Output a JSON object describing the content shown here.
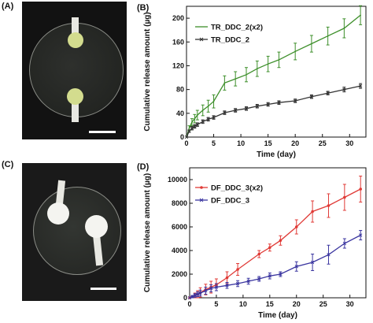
{
  "panels": {
    "A": {
      "label": "(A)"
    },
    "B": {
      "label": "(B)"
    },
    "C": {
      "label": "(C)"
    },
    "D": {
      "label": "(D)"
    }
  },
  "chart_data": [
    {
      "panel": "(B)",
      "type": "line",
      "xlabel": "Time (day)",
      "ylabel": "Cumulative release amount (µg)",
      "xlim": [
        0,
        33
      ],
      "ylim": [
        0,
        220
      ],
      "xticks": [
        0,
        5,
        10,
        15,
        20,
        25,
        30
      ],
      "yticks": [
        0,
        40,
        80,
        120,
        160,
        200
      ],
      "grid": false,
      "legend_position": "top-left",
      "series": [
        {
          "name": "TR_DDC_2(x2)",
          "color": "#3d8f2a",
          "marker": "none",
          "x": [
            0,
            0.5,
            1,
            1.5,
            2,
            3,
            4,
            5,
            7,
            9,
            11,
            13,
            15,
            17,
            20,
            23,
            26,
            29,
            32
          ],
          "y": [
            0,
            15,
            25,
            31,
            37,
            45,
            52,
            60,
            91,
            98,
            105,
            115,
            123,
            130,
            144,
            157,
            170,
            183,
            205
          ],
          "err": [
            0,
            4,
            6,
            7,
            8,
            9,
            10,
            11,
            12,
            12,
            12,
            13,
            13,
            13,
            14,
            14,
            15,
            16,
            16
          ]
        },
        {
          "name": "TR_DDC_2",
          "color": "#333333",
          "marker": "x",
          "x": [
            0,
            0.5,
            1,
            1.5,
            2,
            3,
            4,
            5,
            7,
            9,
            11,
            13,
            15,
            17,
            20,
            23,
            26,
            29,
            32
          ],
          "y": [
            0,
            10,
            15,
            18,
            21,
            26,
            30,
            33,
            41,
            45,
            48,
            52,
            55,
            58,
            61,
            68,
            74,
            80,
            86
          ],
          "err": [
            0,
            2,
            3,
            3,
            3,
            3,
            3,
            3,
            3,
            3,
            3,
            3,
            3,
            3,
            3,
            3,
            3,
            4,
            4
          ]
        }
      ]
    },
    {
      "panel": "(D)",
      "type": "line",
      "xlabel": "Time (day)",
      "ylabel": "Cumulative release amount (µg)",
      "xlim": [
        0,
        33
      ],
      "ylim": [
        0,
        11000
      ],
      "xticks": [
        0,
        5,
        10,
        15,
        20,
        25,
        30
      ],
      "yticks": [
        0,
        2000,
        4000,
        6000,
        8000,
        10000
      ],
      "grid": false,
      "legend_position": "top-left",
      "series": [
        {
          "name": "DF_DDC_3(x2)",
          "color": "#e03a36",
          "marker": "dot",
          "x": [
            0,
            0.5,
            1,
            1.5,
            2,
            3,
            4,
            5,
            7,
            9,
            13,
            15,
            17,
            20,
            23,
            26,
            29,
            32
          ],
          "y": [
            0,
            100,
            200,
            300,
            450,
            700,
            900,
            1100,
            1700,
            2400,
            3700,
            4250,
            4850,
            6000,
            7300,
            7800,
            8500,
            9200
          ],
          "err": [
            0,
            100,
            200,
            300,
            400,
            450,
            500,
            500,
            500,
            500,
            300,
            300,
            400,
            600,
            900,
            1000,
            1100,
            1100
          ]
        },
        {
          "name": "DF_DDC_3",
          "color": "#3b36a0",
          "marker": "x",
          "x": [
            0,
            0.5,
            1,
            1.5,
            2,
            3,
            4,
            5,
            7,
            9,
            11,
            13,
            15,
            17,
            20,
            23,
            26,
            29,
            32
          ],
          "y": [
            0,
            100,
            200,
            300,
            400,
            600,
            800,
            900,
            1050,
            1200,
            1400,
            1600,
            1850,
            2000,
            2650,
            3000,
            3650,
            4600,
            5300
          ],
          "err": [
            0,
            100,
            150,
            200,
            250,
            300,
            300,
            300,
            250,
            250,
            250,
            200,
            250,
            200,
            400,
            700,
            800,
            400,
            400
          ]
        }
      ]
    }
  ]
}
